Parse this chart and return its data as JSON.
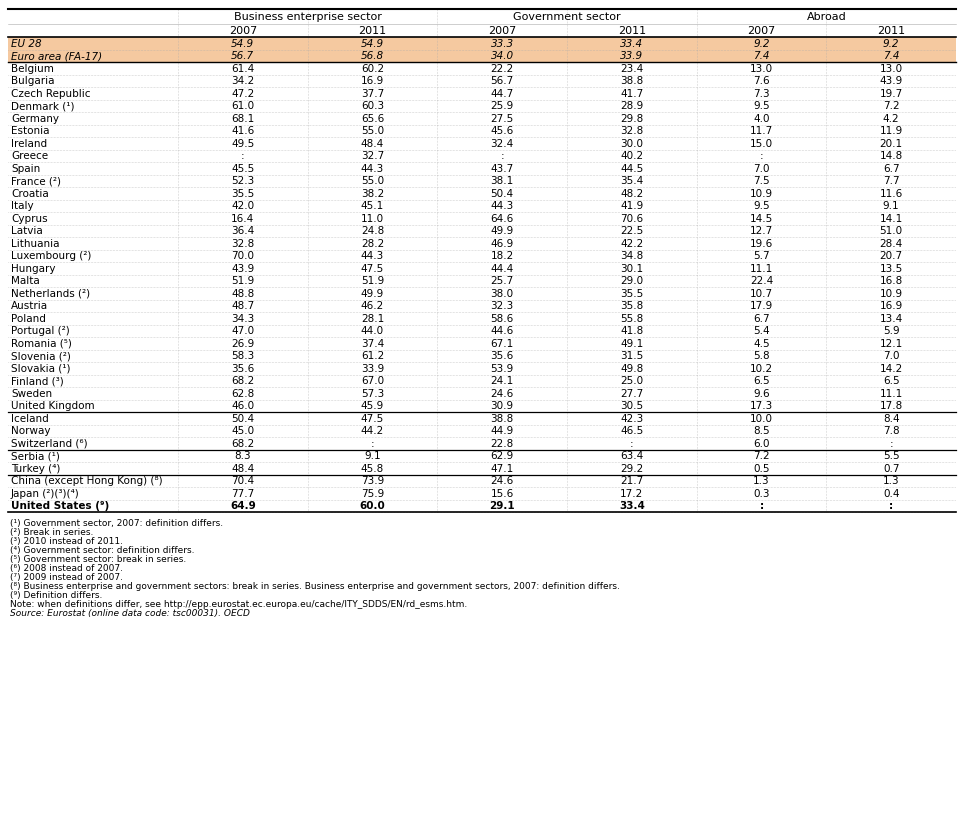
{
  "col_headers": [
    "Business enterprise sector",
    "Government sector",
    "Abroad"
  ],
  "sub_headers": [
    "2007",
    "2011",
    "2007",
    "2011",
    "2007",
    "2011"
  ],
  "rows": [
    {
      "country": "EU 28",
      "values": [
        "54.9",
        "54.9",
        "33.3",
        "33.4",
        "9.2",
        "9.2"
      ],
      "style": "eu",
      "italic": true
    },
    {
      "country": "Euro area (FA-17)",
      "values": [
        "56.7",
        "56.8",
        "34.0",
        "33.9",
        "7.4",
        "7.4"
      ],
      "style": "eu",
      "italic": true
    },
    {
      "country": "Belgium",
      "values": [
        "61.4",
        "60.2",
        "22.2",
        "23.4",
        "13.0",
        "13.0"
      ],
      "style": "normal"
    },
    {
      "country": "Bulgaria",
      "values": [
        "34.2",
        "16.9",
        "56.7",
        "38.8",
        "7.6",
        "43.9"
      ],
      "style": "normal"
    },
    {
      "country": "Czech Republic",
      "values": [
        "47.2",
        "37.7",
        "44.7",
        "41.7",
        "7.3",
        "19.7"
      ],
      "style": "normal"
    },
    {
      "country": "Denmark (¹)",
      "values": [
        "61.0",
        "60.3",
        "25.9",
        "28.9",
        "9.5",
        "7.2"
      ],
      "style": "normal"
    },
    {
      "country": "Germany",
      "values": [
        "68.1",
        "65.6",
        "27.5",
        "29.8",
        "4.0",
        "4.2"
      ],
      "style": "normal"
    },
    {
      "country": "Estonia",
      "values": [
        "41.6",
        "55.0",
        "45.6",
        "32.8",
        "11.7",
        "11.9"
      ],
      "style": "normal"
    },
    {
      "country": "Ireland",
      "values": [
        "49.5",
        "48.4",
        "32.4",
        "30.0",
        "15.0",
        "20.1"
      ],
      "style": "normal"
    },
    {
      "country": "Greece",
      "values": [
        ":",
        "32.7",
        ":",
        "40.2",
        ":",
        "14.8"
      ],
      "style": "normal"
    },
    {
      "country": "Spain",
      "values": [
        "45.5",
        "44.3",
        "43.7",
        "44.5",
        "7.0",
        "6.7"
      ],
      "style": "normal"
    },
    {
      "country": "France (²)",
      "values": [
        "52.3",
        "55.0",
        "38.1",
        "35.4",
        "7.5",
        "7.7"
      ],
      "style": "normal"
    },
    {
      "country": "Croatia",
      "values": [
        "35.5",
        "38.2",
        "50.4",
        "48.2",
        "10.9",
        "11.6"
      ],
      "style": "normal"
    },
    {
      "country": "Italy",
      "values": [
        "42.0",
        "45.1",
        "44.3",
        "41.9",
        "9.5",
        "9.1"
      ],
      "style": "normal"
    },
    {
      "country": "Cyprus",
      "values": [
        "16.4",
        "11.0",
        "64.6",
        "70.6",
        "14.5",
        "14.1"
      ],
      "style": "normal"
    },
    {
      "country": "Latvia",
      "values": [
        "36.4",
        "24.8",
        "49.9",
        "22.5",
        "12.7",
        "51.0"
      ],
      "style": "normal"
    },
    {
      "country": "Lithuania",
      "values": [
        "32.8",
        "28.2",
        "46.9",
        "42.2",
        "19.6",
        "28.4"
      ],
      "style": "normal"
    },
    {
      "country": "Luxembourg (²)",
      "values": [
        "70.0",
        "44.3",
        "18.2",
        "34.8",
        "5.7",
        "20.7"
      ],
      "style": "normal"
    },
    {
      "country": "Hungary",
      "values": [
        "43.9",
        "47.5",
        "44.4",
        "30.1",
        "11.1",
        "13.5"
      ],
      "style": "normal"
    },
    {
      "country": "Malta",
      "values": [
        "51.9",
        "51.9",
        "25.7",
        "29.0",
        "22.4",
        "16.8"
      ],
      "style": "normal"
    },
    {
      "country": "Netherlands (²)",
      "values": [
        "48.8",
        "49.9",
        "38.0",
        "35.5",
        "10.7",
        "10.9"
      ],
      "style": "normal"
    },
    {
      "country": "Austria",
      "values": [
        "48.7",
        "46.2",
        "32.3",
        "35.8",
        "17.9",
        "16.9"
      ],
      "style": "normal"
    },
    {
      "country": "Poland",
      "values": [
        "34.3",
        "28.1",
        "58.6",
        "55.8",
        "6.7",
        "13.4"
      ],
      "style": "normal"
    },
    {
      "country": "Portugal (²)",
      "values": [
        "47.0",
        "44.0",
        "44.6",
        "41.8",
        "5.4",
        "5.9"
      ],
      "style": "normal"
    },
    {
      "country": "Romania (⁵)",
      "values": [
        "26.9",
        "37.4",
        "67.1",
        "49.1",
        "4.5",
        "12.1"
      ],
      "style": "normal"
    },
    {
      "country": "Slovenia (²)",
      "values": [
        "58.3",
        "61.2",
        "35.6",
        "31.5",
        "5.8",
        "7.0"
      ],
      "style": "normal"
    },
    {
      "country": "Slovakia (¹)",
      "values": [
        "35.6",
        "33.9",
        "53.9",
        "49.8",
        "10.2",
        "14.2"
      ],
      "style": "normal"
    },
    {
      "country": "Finland (³)",
      "values": [
        "68.2",
        "67.0",
        "24.1",
        "25.0",
        "6.5",
        "6.5"
      ],
      "style": "normal"
    },
    {
      "country": "Sweden",
      "values": [
        "62.8",
        "57.3",
        "24.6",
        "27.7",
        "9.6",
        "11.1"
      ],
      "style": "normal"
    },
    {
      "country": "United Kingdom",
      "values": [
        "46.0",
        "45.9",
        "30.9",
        "30.5",
        "17.3",
        "17.8"
      ],
      "style": "normal"
    },
    {
      "country": "Iceland",
      "values": [
        "50.4",
        "47.5",
        "38.8",
        "42.3",
        "10.0",
        "8.4"
      ],
      "style": "separator_above"
    },
    {
      "country": "Norway",
      "values": [
        "45.0",
        "44.2",
        "44.9",
        "46.5",
        "8.5",
        "7.8"
      ],
      "style": "normal"
    },
    {
      "country": "Switzerland (⁶)",
      "values": [
        "68.2",
        ":",
        "22.8",
        ":",
        "6.0",
        ":"
      ],
      "style": "normal"
    },
    {
      "country": "Serbia (¹)",
      "values": [
        "8.3",
        "9.1",
        "62.9",
        "63.4",
        "7.2",
        "5.5"
      ],
      "style": "separator_above"
    },
    {
      "country": "Turkey (⁴)",
      "values": [
        "48.4",
        "45.8",
        "47.1",
        "29.2",
        "0.5",
        "0.7"
      ],
      "style": "normal"
    },
    {
      "country": "China (except Hong Kong) (⁸)",
      "values": [
        "70.4",
        "73.9",
        "24.6",
        "21.7",
        "1.3",
        "1.3"
      ],
      "style": "separator_above"
    },
    {
      "country": "Japan (²)(³)(⁴)",
      "values": [
        "77.7",
        "75.9",
        "15.6",
        "17.2",
        "0.3",
        "0.4"
      ],
      "style": "normal"
    },
    {
      "country": "United States (⁹)",
      "values": [
        "64.9",
        "60.0",
        "29.1",
        "33.4",
        ":",
        ":"
      ],
      "style": "bold"
    }
  ],
  "footnotes": [
    {
      "text": "(¹) Government sector, 2007: definition differs.",
      "italic": false
    },
    {
      "text": "(²) Break in series.",
      "italic": false
    },
    {
      "text": "(³) 2010 instead of 2011.",
      "italic": false
    },
    {
      "text": "(⁴) Government sector: definition differs.",
      "italic": false
    },
    {
      "text": "(⁵) Government sector: break in series.",
      "italic": false
    },
    {
      "text": "(⁶) 2008 instead of 2007.",
      "italic": false
    },
    {
      "text": "(⁷) 2009 instead of 2007.",
      "italic": false
    },
    {
      "text": "(⁸) Business enterprise and government sectors: break in series. Business enterprise and government sectors, 2007: definition differs.",
      "italic": false
    },
    {
      "text": "(⁹) Definition differs.",
      "italic": false
    },
    {
      "text": "Note: when definitions differ, see http://epp.eurostat.ec.europa.eu/cache/ITY_SDDS/EN/rd_esms.htm.",
      "italic": false
    },
    {
      "text": "Source: Eurostat (online data code: tsc00031). OECD",
      "italic": true
    }
  ],
  "eu_bg_color": "#f5c9a0",
  "bold_rows": [
    "United States (⁹)"
  ]
}
